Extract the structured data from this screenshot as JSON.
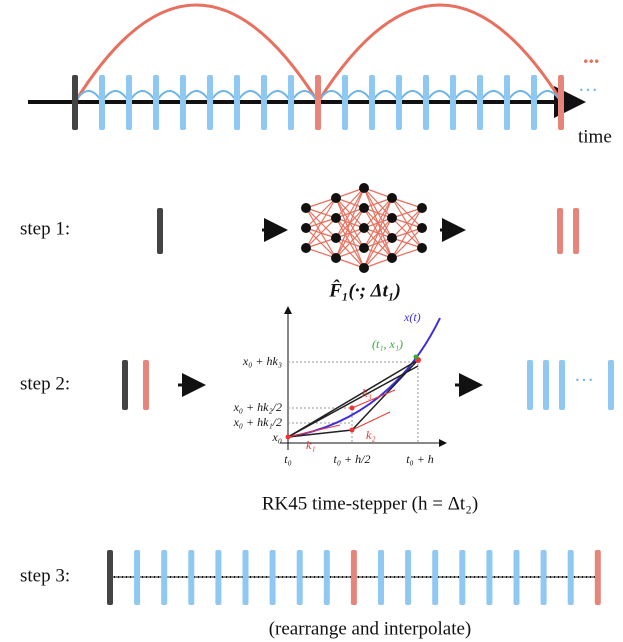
{
  "timeline": {
    "axis_label": "time",
    "coarse_more": "...",
    "fine_more": "···"
  },
  "steps": [
    {
      "label": "step 1:",
      "caption": "F̂₁(·; Δt₁)"
    },
    {
      "label": "step 2:",
      "caption": "RK45 time-stepper (h = Δt₂)",
      "more": "···"
    },
    {
      "label": "step 3:",
      "caption": "(rearrange and interpolate)"
    }
  ],
  "rk_plot": {
    "curve": "x(t)",
    "endpoint": "(t₁, x₁)",
    "y_labels": [
      "x₀ + hk₃",
      "x₀ + hk₂/2",
      "x₀ + hk₁/2",
      "x₀"
    ],
    "x_labels": [
      "t₀",
      "t₀ + h/2",
      "t₀ + h"
    ],
    "slopes": [
      "k₁",
      "k₂",
      "k₃"
    ]
  }
}
